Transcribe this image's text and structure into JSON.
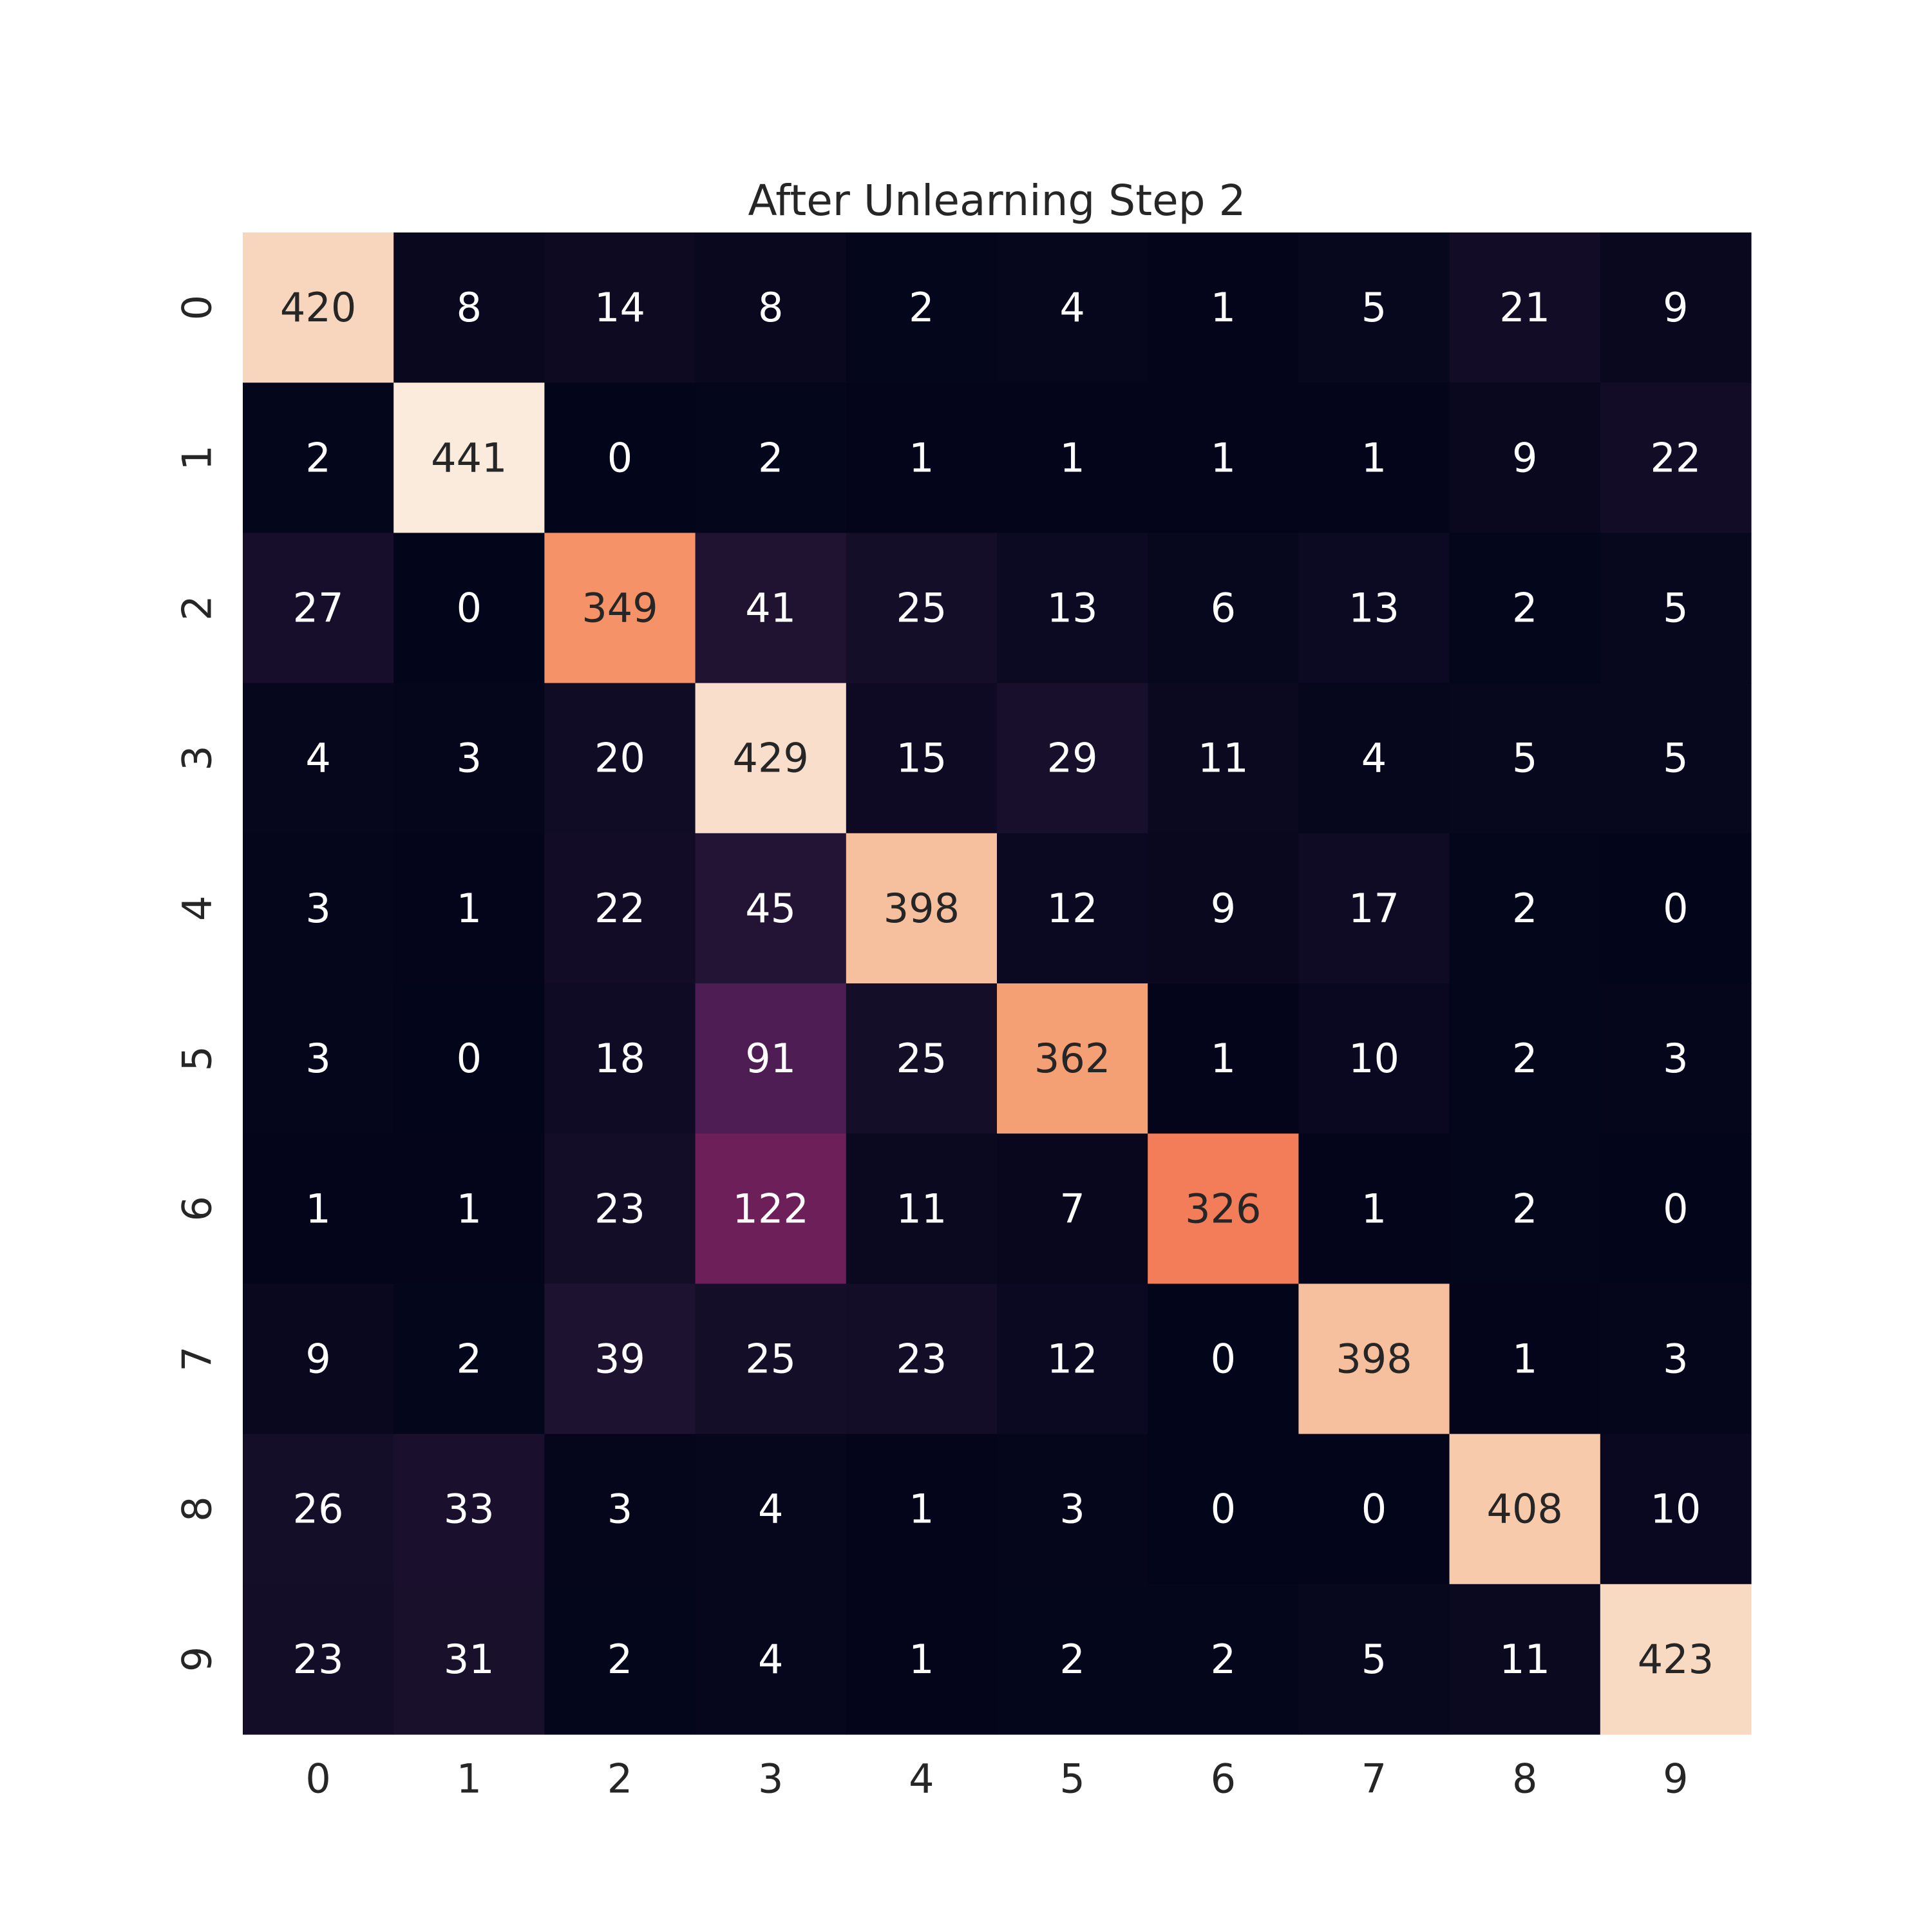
{
  "chart_data": {
    "type": "heatmap",
    "title": "After Unlearning Step 2",
    "xlabel": "",
    "ylabel": "",
    "x_categories": [
      "0",
      "1",
      "2",
      "3",
      "4",
      "5",
      "6",
      "7",
      "8",
      "9"
    ],
    "y_categories": [
      "0",
      "1",
      "2",
      "3",
      "4",
      "5",
      "6",
      "7",
      "8",
      "9"
    ],
    "values": [
      [
        420,
        8,
        14,
        8,
        2,
        4,
        1,
        5,
        21,
        9
      ],
      [
        2,
        441,
        0,
        2,
        1,
        1,
        1,
        1,
        9,
        22
      ],
      [
        27,
        0,
        349,
        41,
        25,
        13,
        6,
        13,
        2,
        5
      ],
      [
        4,
        3,
        20,
        429,
        15,
        29,
        11,
        4,
        5,
        5
      ],
      [
        3,
        1,
        22,
        45,
        398,
        12,
        9,
        17,
        2,
        0
      ],
      [
        3,
        0,
        18,
        91,
        25,
        362,
        1,
        10,
        2,
        3
      ],
      [
        1,
        1,
        23,
        122,
        11,
        7,
        326,
        1,
        2,
        0
      ],
      [
        9,
        2,
        39,
        25,
        23,
        12,
        0,
        398,
        1,
        3
      ],
      [
        26,
        33,
        3,
        4,
        1,
        3,
        0,
        0,
        408,
        10
      ],
      [
        23,
        31,
        2,
        4,
        1,
        2,
        2,
        5,
        11,
        423
      ]
    ],
    "value_range": [
      0,
      441
    ],
    "colormap": "rocket",
    "annotations": true,
    "colorbar": false,
    "grid": false,
    "y_tick_rotation": "vertical"
  }
}
